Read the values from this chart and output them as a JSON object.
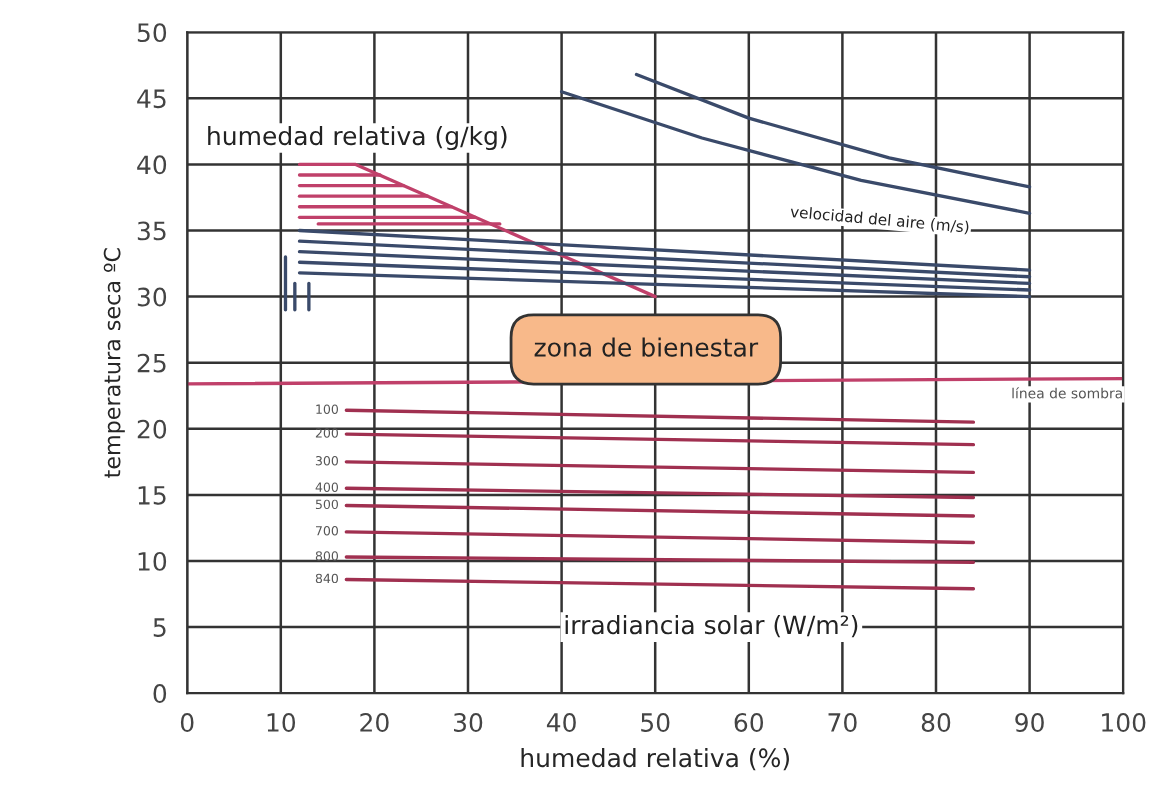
{
  "chart_data": {
    "type": "line",
    "xlabel": "humedad relativa (%)",
    "ylabel": "temperatura seca ºC",
    "xlim": [
      0,
      100
    ],
    "ylim": [
      0,
      50
    ],
    "xticks": [
      0,
      10,
      20,
      30,
      40,
      50,
      60,
      70,
      80,
      90,
      100
    ],
    "yticks": [
      0,
      5,
      10,
      15,
      20,
      25,
      30,
      35,
      40,
      45,
      50
    ],
    "grid": true,
    "series": [
      {
        "color": "#c0406a",
        "x": [
          12,
          18,
          50
        ],
        "values": [
          40,
          40,
          30
        ]
      },
      {
        "color": "#c0406a",
        "x": [
          12,
          20.6
        ],
        "values": [
          39.2,
          39.2
        ]
      },
      {
        "color": "#c0406a",
        "x": [
          12,
          23.1
        ],
        "values": [
          38.4,
          38.4
        ]
      },
      {
        "color": "#c0406a",
        "x": [
          12,
          25.7
        ],
        "values": [
          37.6,
          37.6
        ]
      },
      {
        "color": "#c0406a",
        "x": [
          12,
          28.2
        ],
        "values": [
          36.8,
          36.8
        ]
      },
      {
        "color": "#c0406a",
        "x": [
          12,
          30.8
        ],
        "values": [
          36,
          36
        ]
      },
      {
        "color": "#c0406a",
        "x": [
          14,
          33.4
        ],
        "values": [
          35.5,
          35.5
        ]
      },
      {
        "color": "#3a4a6a",
        "x": [
          12,
          90
        ],
        "values": [
          35,
          32
        ]
      },
      {
        "color": "#3a4a6a",
        "x": [
          12,
          90
        ],
        "values": [
          34.2,
          31.5
        ]
      },
      {
        "color": "#3a4a6a",
        "x": [
          12,
          90
        ],
        "values": [
          33.4,
          31
        ]
      },
      {
        "color": "#3a4a6a",
        "x": [
          12,
          90
        ],
        "values": [
          32.6,
          30.5
        ]
      },
      {
        "color": "#3a4a6a",
        "x": [
          12,
          90
        ],
        "values": [
          31.8,
          30
        ]
      },
      {
        "color": "#3a4a6a",
        "x": [
          10.5,
          10.5
        ],
        "values": [
          33,
          29
        ]
      },
      {
        "color": "#3a4a6a",
        "x": [
          11.5,
          11.5
        ],
        "values": [
          31,
          29
        ]
      },
      {
        "color": "#3a4a6a",
        "x": [
          13,
          13
        ],
        "values": [
          31,
          29
        ]
      },
      {
        "color": "#3a4a6a",
        "x": [
          48,
          60,
          75,
          90
        ],
        "values": [
          46.8,
          43.5,
          40.5,
          38.3
        ]
      },
      {
        "color": "#3a4a6a",
        "x": [
          40,
          55,
          72,
          90
        ],
        "values": [
          45.5,
          42,
          38.8,
          36.3
        ]
      },
      {
        "name": "línea de sombra",
        "color": "#c0406a",
        "x": [
          0,
          100
        ],
        "values": [
          23.4,
          23.8
        ]
      },
      {
        "name": "100",
        "color": "#a03050",
        "x": [
          17,
          84
        ],
        "values": [
          21.4,
          20.5
        ]
      },
      {
        "name": "200",
        "color": "#a03050",
        "x": [
          17,
          84
        ],
        "values": [
          19.6,
          18.8
        ]
      },
      {
        "name": "300",
        "color": "#a03050",
        "x": [
          17,
          84
        ],
        "values": [
          17.5,
          16.7
        ]
      },
      {
        "name": "400",
        "color": "#a03050",
        "x": [
          17,
          84
        ],
        "values": [
          15.5,
          14.8
        ]
      },
      {
        "name": "500",
        "color": "#a03050",
        "x": [
          17,
          84
        ],
        "values": [
          14.2,
          13.4
        ]
      },
      {
        "name": "700",
        "color": "#a03050",
        "x": [
          17,
          84
        ],
        "values": [
          12.2,
          11.4
        ]
      },
      {
        "name": "800",
        "color": "#a03050",
        "x": [
          17,
          84
        ],
        "values": [
          10.3,
          9.9
        ]
      },
      {
        "name": "840",
        "color": "#a03050",
        "x": [
          17,
          84
        ],
        "values": [
          8.6,
          7.9
        ]
      }
    ],
    "annotations": [
      "humedad relativa (g/kg)",
      "velocidad del aire (m/s)",
      "zona de bienestar",
      "irradiancia solar (W/m²)"
    ]
  }
}
